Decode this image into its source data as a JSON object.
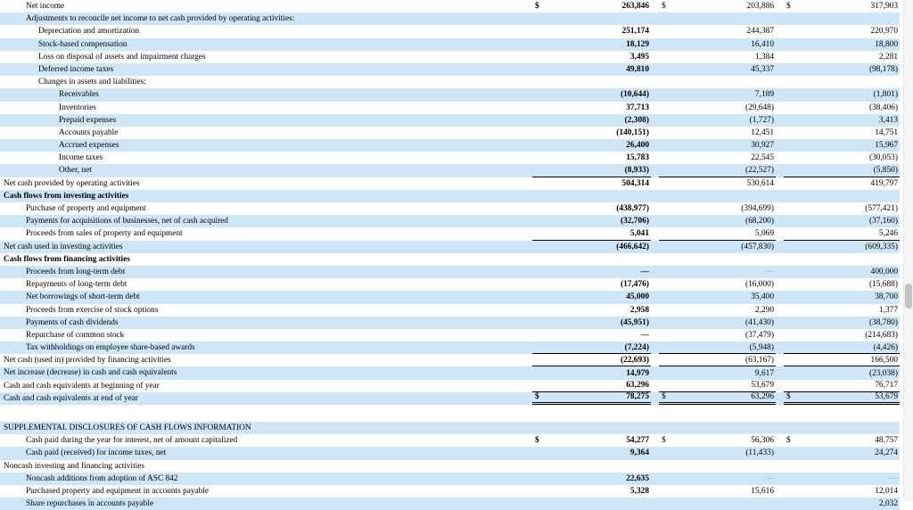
{
  "document": {
    "type": "consolidated-statement-of-cash-flows",
    "currency_symbol": "$",
    "shade_color": "#cfe6f6"
  },
  "table": {
    "rows": [
      {
        "label": "Net income",
        "ind": 1,
        "shade": false,
        "c": [
          {
            "s": "$",
            "v": "263,846"
          },
          {
            "s": "$",
            "v": "203,886"
          },
          {
            "s": "$",
            "v": "317,903"
          }
        ]
      },
      {
        "label": "Adjustments to reconcile net income to net cash provided by operating activities:",
        "ind": 1,
        "shade": true,
        "c": []
      },
      {
        "label": "Depreciation and amortization",
        "ind": 2,
        "shade": false,
        "c": [
          {
            "v": "251,174"
          },
          {
            "v": "244,387"
          },
          {
            "v": "220,970"
          }
        ]
      },
      {
        "label": "Stock-based compensation",
        "ind": 2,
        "shade": true,
        "c": [
          {
            "v": "18,129"
          },
          {
            "v": "16,410"
          },
          {
            "v": "18,800"
          }
        ]
      },
      {
        "label": "Loss on disposal of assets and impairment charges",
        "ind": 2,
        "shade": false,
        "c": [
          {
            "v": "3,495"
          },
          {
            "v": "1,384"
          },
          {
            "v": "2,281"
          }
        ]
      },
      {
        "label": "Deferred income taxes",
        "ind": 2,
        "shade": true,
        "c": [
          {
            "v": "49,810"
          },
          {
            "v": "45,337"
          },
          {
            "v": "(98,178)"
          }
        ]
      },
      {
        "label": "Changes in assets and liabilities:",
        "ind": 2,
        "shade": false,
        "c": []
      },
      {
        "label": "Receivables",
        "ind": 3,
        "shade": true,
        "c": [
          {
            "v": "(10,644)"
          },
          {
            "v": "7,189"
          },
          {
            "v": "(1,801)"
          }
        ]
      },
      {
        "label": "Inventories",
        "ind": 3,
        "shade": false,
        "c": [
          {
            "v": "37,713"
          },
          {
            "v": "(29,648)"
          },
          {
            "v": "(38,406)"
          }
        ]
      },
      {
        "label": "Prepaid expenses",
        "ind": 3,
        "shade": true,
        "c": [
          {
            "v": "(2,308)"
          },
          {
            "v": "(1,727)"
          },
          {
            "v": "3,413"
          }
        ]
      },
      {
        "label": "Accounts payable",
        "ind": 3,
        "shade": false,
        "c": [
          {
            "v": "(140,151)"
          },
          {
            "v": "12,451"
          },
          {
            "v": "14,751"
          }
        ]
      },
      {
        "label": "Accrued expenses",
        "ind": 3,
        "shade": true,
        "c": [
          {
            "v": "26,400"
          },
          {
            "v": "30,927"
          },
          {
            "v": "15,967"
          }
        ]
      },
      {
        "label": "Income taxes",
        "ind": 3,
        "shade": false,
        "c": [
          {
            "v": "15,783"
          },
          {
            "v": "22,545"
          },
          {
            "v": "(30,053)"
          }
        ]
      },
      {
        "label": "Other, net",
        "ind": 3,
        "shade": true,
        "u": 1,
        "c": [
          {
            "v": "(8,933)"
          },
          {
            "v": "(22,527)"
          },
          {
            "v": "(5,850)"
          }
        ]
      },
      {
        "label": "Net cash provided by operating activities",
        "ind": 0,
        "shade": false,
        "c": [
          {
            "v": "504,314"
          },
          {
            "v": "530,614"
          },
          {
            "v": "419,797"
          }
        ]
      },
      {
        "label": "Cash flows from investing activities",
        "ind": 0,
        "bold": true,
        "shade": true,
        "c": []
      },
      {
        "label": "Purchase of property and equipment",
        "ind": 1,
        "shade": false,
        "c": [
          {
            "v": "(438,977)"
          },
          {
            "v": "(394,699)"
          },
          {
            "v": "(577,421)"
          }
        ]
      },
      {
        "label": "Payments for acquisitions of businesses, net of cash acquired",
        "ind": 1,
        "shade": true,
        "c": [
          {
            "v": "(32,706)"
          },
          {
            "v": "(68,200)"
          },
          {
            "v": "(37,160)"
          }
        ]
      },
      {
        "label": "Proceeds from sales of property and equipment",
        "ind": 1,
        "shade": false,
        "u": 1,
        "c": [
          {
            "v": "5,041"
          },
          {
            "v": "5,069"
          },
          {
            "v": "5,246"
          }
        ]
      },
      {
        "label": "Net cash used in investing activities",
        "ind": 0,
        "shade": true,
        "c": [
          {
            "v": "(466,642)"
          },
          {
            "v": "(457,830)"
          },
          {
            "v": "(609,335)"
          }
        ]
      },
      {
        "label": "Cash flows from financing activities",
        "ind": 0,
        "bold": true,
        "shade": false,
        "c": []
      },
      {
        "label": "Proceeds from long-term debt",
        "ind": 1,
        "shade": true,
        "c": [
          {
            "v": "—"
          },
          {
            "v": "—",
            "dim": true
          },
          {
            "v": "400,000"
          }
        ]
      },
      {
        "label": "Repayments of long-term debt",
        "ind": 1,
        "shade": false,
        "c": [
          {
            "v": "(17,476)"
          },
          {
            "v": "(16,000)"
          },
          {
            "v": "(15,688)"
          }
        ]
      },
      {
        "label": "Net borrowings of short-term debt",
        "ind": 1,
        "shade": true,
        "c": [
          {
            "v": "45,000"
          },
          {
            "v": "35,400"
          },
          {
            "v": "38,700"
          }
        ]
      },
      {
        "label": "Proceeds from exercise of stock options",
        "ind": 1,
        "shade": false,
        "c": [
          {
            "v": "2,958"
          },
          {
            "v": "2,290"
          },
          {
            "v": "1,377"
          }
        ]
      },
      {
        "label": "Payments of cash dividends",
        "ind": 1,
        "shade": true,
        "c": [
          {
            "v": "(45,951)"
          },
          {
            "v": "(41,430)"
          },
          {
            "v": "(38,780)"
          }
        ]
      },
      {
        "label": "Repurchase of common stock",
        "ind": 1,
        "shade": false,
        "c": [
          {
            "v": "—"
          },
          {
            "v": "(37,479)"
          },
          {
            "v": "(214,683)"
          }
        ]
      },
      {
        "label": "Tax withholdings on employee share-based awards",
        "ind": 1,
        "shade": true,
        "u": 1,
        "c": [
          {
            "v": "(7,224)"
          },
          {
            "v": "(5,948)"
          },
          {
            "v": "(4,426)"
          }
        ]
      },
      {
        "label": "Net cash (used in) provided by financing activities",
        "ind": 0,
        "shade": false,
        "u": 1,
        "c": [
          {
            "v": "(22,693)"
          },
          {
            "v": "(63,167)"
          },
          {
            "v": "166,500"
          }
        ]
      },
      {
        "label": "Net increase (decrease) in cash and cash equivalents",
        "ind": 0,
        "shade": true,
        "c": [
          {
            "v": "14,979"
          },
          {
            "v": "9,617"
          },
          {
            "v": "(23,038)"
          }
        ]
      },
      {
        "label": "Cash and cash equivalents at beginning of year",
        "ind": 0,
        "shade": false,
        "u": 1,
        "c": [
          {
            "v": "63,296"
          },
          {
            "v": "53,679"
          },
          {
            "v": "76,717"
          }
        ]
      },
      {
        "label": "Cash and cash equivalents at end of year",
        "ind": 0,
        "shade": true,
        "u": 2,
        "c": [
          {
            "s": "$",
            "v": "78,275"
          },
          {
            "s": "$",
            "v": "63,296"
          },
          {
            "s": "$",
            "v": "53,679"
          }
        ]
      },
      {
        "spacer": true
      },
      {
        "label": "SUPPLEMENTAL DISCLOSURES OF CASH FLOWS INFORMATION",
        "ind": 0,
        "shade": true,
        "c": []
      },
      {
        "label": "Cash paid during the year for interest, net of amount capitalized",
        "ind": 1,
        "shade": false,
        "c": [
          {
            "s": "$",
            "v": "54,277"
          },
          {
            "s": "$",
            "v": "56,306"
          },
          {
            "s": "$",
            "v": "48,757"
          }
        ]
      },
      {
        "label": "Cash paid (received) for income taxes, net",
        "ind": 1,
        "shade": true,
        "c": [
          {
            "v": "9,364"
          },
          {
            "v": "(11,433)"
          },
          {
            "v": "24,274"
          }
        ]
      },
      {
        "label": "Noncash investing and financing activities",
        "ind": 0,
        "shade": false,
        "c": []
      },
      {
        "label": "Noncash additions from adoption of ASC 842",
        "ind": 1,
        "shade": true,
        "c": [
          {
            "v": "22,635"
          },
          {
            "v": "—",
            "dim": true
          },
          {
            "v": "—",
            "dim": true
          }
        ]
      },
      {
        "label": "Purchased property and equipment in accounts payable",
        "ind": 1,
        "shade": false,
        "c": [
          {
            "v": "5,328"
          },
          {
            "v": "15,616"
          },
          {
            "v": "12,014"
          }
        ]
      },
      {
        "label": "Share repurchases in accounts payable",
        "ind": 1,
        "shade": true,
        "c": [
          {
            "v": ""
          },
          {
            "v": ""
          },
          {
            "v": "2,032"
          }
        ]
      }
    ]
  }
}
